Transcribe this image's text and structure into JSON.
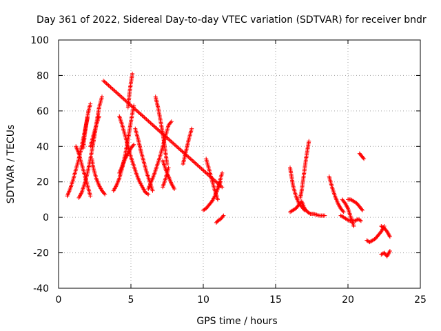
{
  "chart_data": {
    "type": "scatter",
    "title": "Day 361 of 2022, Sidereal Day-to-day VTEC variation (SDTVAR) for receiver bndr",
    "xlabel": "GPS time / hours",
    "ylabel": "SDTVAR / TECUs",
    "xlim": [
      0,
      25
    ],
    "ylim": [
      -40,
      100
    ],
    "xticks": [
      0,
      5,
      10,
      15,
      20,
      25
    ],
    "yticks": [
      -40,
      -20,
      0,
      20,
      40,
      60,
      80,
      100
    ],
    "grid": true,
    "marker": "+",
    "color": "#ff0000",
    "series": [
      {
        "name": "arc01",
        "x": [
          0.6,
          0.8,
          1.0,
          1.2,
          1.4,
          1.6,
          1.8,
          2.0
        ],
        "y": [
          12,
          16,
          21,
          27,
          33,
          40,
          48,
          56
        ]
      },
      {
        "name": "arc02",
        "x": [
          1.4,
          1.6,
          1.8,
          2.0,
          2.2,
          2.4,
          2.6,
          2.8,
          3.0
        ],
        "y": [
          11,
          14,
          19,
          25,
          33,
          42,
          52,
          62,
          68
        ]
      },
      {
        "name": "arc03",
        "x": [
          1.2,
          1.4,
          1.6,
          1.8,
          2.0,
          2.2
        ],
        "y": [
          40,
          36,
          30,
          24,
          18,
          12
        ]
      },
      {
        "name": "arc04",
        "x": [
          1.7,
          1.8,
          1.9,
          2.0,
          2.1,
          2.2
        ],
        "y": [
          39,
          46,
          52,
          57,
          61,
          64
        ]
      },
      {
        "name": "arc05",
        "x": [
          2.3,
          2.4,
          2.6,
          2.8,
          3.0,
          3.2
        ],
        "y": [
          33,
          28,
          22,
          18,
          15,
          13
        ]
      },
      {
        "name": "arc06",
        "x": [
          2.2,
          2.4,
          2.6,
          2.8
        ],
        "y": [
          40,
          46,
          52,
          57
        ]
      },
      {
        "name": "stray",
        "x": [
          3.1,
          11.3
        ],
        "y": [
          77,
          17
        ]
      },
      {
        "name": "arc07",
        "x": [
          3.8,
          4.0,
          4.2,
          4.4,
          4.6,
          4.8,
          5.0,
          5.2
        ],
        "y": [
          15,
          18,
          22,
          28,
          35,
          44,
          54,
          63
        ]
      },
      {
        "name": "arc08",
        "x": [
          4.2,
          4.4,
          4.6,
          4.8,
          5.0,
          5.2,
          5.4,
          5.6,
          5.8,
          6.0,
          6.2
        ],
        "y": [
          57,
          52,
          46,
          40,
          34,
          29,
          24,
          20,
          17,
          14,
          13
        ]
      },
      {
        "name": "arc09",
        "x": [
          4.2,
          4.4,
          4.6,
          4.8,
          5.0,
          5.2
        ],
        "y": [
          25,
          29,
          33,
          36,
          39,
          41
        ]
      },
      {
        "name": "arc10",
        "x": [
          4.8,
          4.9,
          5.0,
          5.1
        ],
        "y": [
          62,
          70,
          76,
          81
        ]
      },
      {
        "name": "arc11",
        "x": [
          5.3,
          5.5,
          5.7,
          5.9,
          6.1,
          6.3,
          6.5
        ],
        "y": [
          50,
          44,
          37,
          31,
          25,
          20,
          15
        ]
      },
      {
        "name": "arc12",
        "x": [
          6.2,
          6.4,
          6.6,
          6.8,
          7.0,
          7.2,
          7.4,
          7.6,
          7.8
        ],
        "y": [
          16,
          20,
          24,
          29,
          34,
          40,
          46,
          52,
          54
        ]
      },
      {
        "name": "arc13",
        "x": [
          6.7,
          6.9,
          7.1,
          7.3,
          7.5
        ],
        "y": [
          68,
          61,
          52,
          42,
          30
        ]
      },
      {
        "name": "arc14",
        "x": [
          7.2,
          7.4,
          7.6,
          7.8,
          8.0
        ],
        "y": [
          32,
          27,
          23,
          19,
          16
        ]
      },
      {
        "name": "arc15",
        "x": [
          7.2,
          7.4,
          7.6
        ],
        "y": [
          17,
          22,
          28
        ]
      },
      {
        "name": "arc16",
        "x": [
          8.6,
          8.8,
          9.0,
          9.2
        ],
        "y": [
          30,
          37,
          44,
          50
        ]
      },
      {
        "name": "arc17",
        "x": [
          10.2,
          10.4,
          10.6,
          10.8,
          11.0
        ],
        "y": [
          33,
          27,
          21,
          15,
          10
        ]
      },
      {
        "name": "arc18",
        "x": [
          10.0,
          10.2,
          10.4,
          10.6,
          10.8,
          11.0,
          11.2
        ],
        "y": [
          4,
          5,
          7,
          9,
          12,
          16,
          20
        ]
      },
      {
        "name": "arc19",
        "x": [
          11.0,
          11.1,
          11.2,
          11.3
        ],
        "y": [
          16,
          19,
          22,
          25
        ]
      },
      {
        "name": "arc20",
        "x": [
          10.9,
          11.0,
          11.2,
          11.4
        ],
        "y": [
          -3,
          -2,
          -1,
          1
        ]
      },
      {
        "name": "arc21",
        "x": [
          16.0,
          16.2,
          16.4,
          16.6,
          16.8,
          17.0
        ],
        "y": [
          28,
          18,
          12,
          8,
          6,
          4
        ]
      },
      {
        "name": "arc22",
        "x": [
          16.0,
          16.2,
          16.4,
          16.6,
          16.8,
          17.0,
          17.2,
          17.4,
          17.6,
          18.0,
          18.4
        ],
        "y": [
          3,
          4,
          5,
          7,
          9,
          5,
          3,
          2,
          2,
          1,
          1
        ]
      },
      {
        "name": "arc23",
        "x": [
          16.7,
          16.8,
          16.9,
          17.0,
          17.1,
          17.2,
          17.3
        ],
        "y": [
          11,
          15,
          21,
          27,
          33,
          38,
          43
        ]
      },
      {
        "name": "arc24",
        "x": [
          18.7,
          18.9,
          19.1,
          19.3,
          19.5,
          19.7
        ],
        "y": [
          23,
          17,
          12,
          8,
          5,
          3
        ]
      },
      {
        "name": "arc25",
        "x": [
          19.5,
          19.7,
          19.9,
          20.1,
          20.3,
          20.5,
          20.7,
          20.9
        ],
        "y": [
          1,
          0,
          -1,
          -2,
          -2,
          -2,
          -1,
          -2
        ]
      },
      {
        "name": "arc26",
        "x": [
          19.6,
          19.8,
          20.0,
          20.2,
          20.4
        ],
        "y": [
          10,
          8,
          5,
          0,
          -5
        ]
      },
      {
        "name": "arc27",
        "x": [
          20.0,
          20.2,
          20.4,
          20.6,
          20.8,
          21.0
        ],
        "y": [
          10,
          10,
          9,
          8,
          6,
          4
        ]
      },
      {
        "name": "arc28",
        "x": [
          20.8,
          20.9,
          21.0,
          21.1
        ],
        "y": [
          36,
          35,
          34,
          33
        ]
      },
      {
        "name": "arc29",
        "x": [
          21.3,
          21.5,
          21.7,
          21.9,
          22.1,
          22.3,
          22.5
        ],
        "y": [
          -13,
          -14,
          -13,
          -12,
          -10,
          -8,
          -5
        ]
      },
      {
        "name": "arc30",
        "x": [
          22.3,
          22.5,
          22.7,
          22.9
        ],
        "y": [
          -5,
          -6,
          -8,
          -11
        ]
      },
      {
        "name": "arc31",
        "x": [
          22.3,
          22.5,
          22.7,
          22.9
        ],
        "y": [
          -21,
          -20,
          -22,
          -19
        ]
      }
    ]
  }
}
